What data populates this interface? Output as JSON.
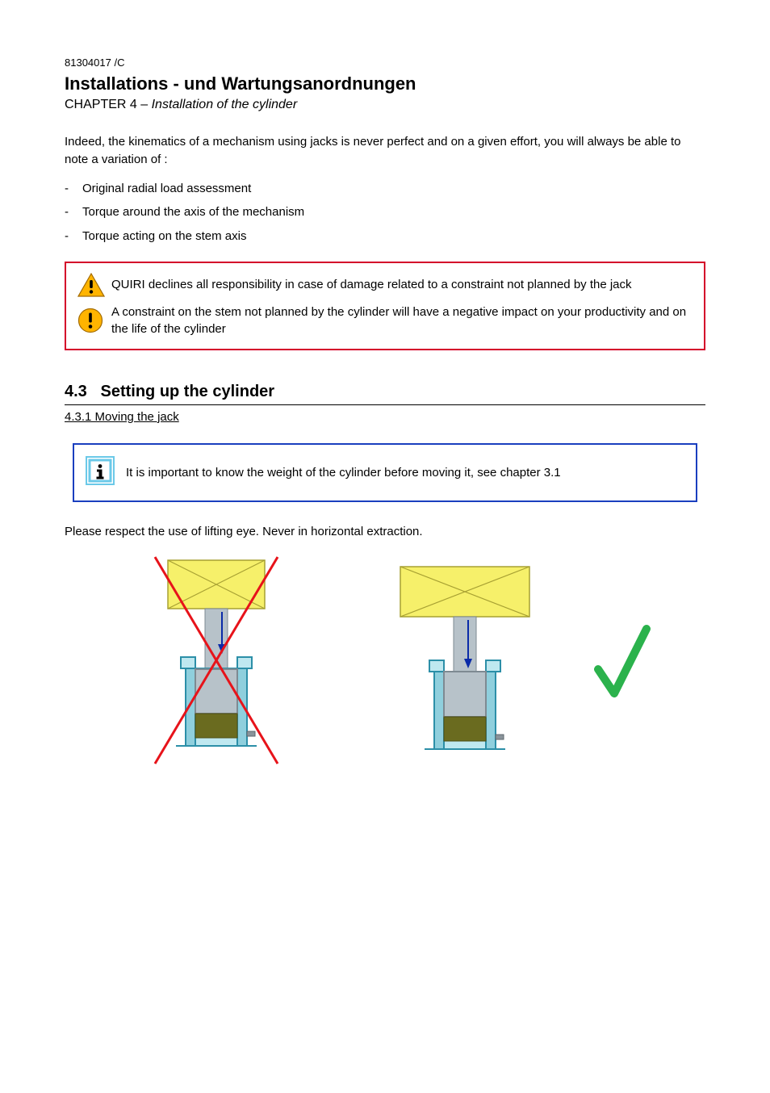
{
  "doc_code": "81304017 /C",
  "doc_title": "Installations - und Wartungsanordnungen",
  "chapter_prefix": "CHAPTER 4 – ",
  "chapter_title_italic": "Installation of the cylinder",
  "intro_para": "Indeed, the kinematics of a mechanism using jacks is never perfect and on a given effort, you will always be able to note a variation of :",
  "bullets": [
    "Original radial load assessment",
    "Torque around the axis of the mechanism",
    "Torque acting on the stem axis"
  ],
  "warn": {
    "line1": "QUIRI declines all responsibility in case of damage related to a constraint not planned by the jack",
    "line2": "A constraint on the stem not planned by the cylinder will have a negative impact on your productivity and on the life of the cylinder"
  },
  "section_number": "4.3",
  "section_title": "Setting up the cylinder",
  "section_sub": "4.3.1 Moving the jack",
  "info_text": "It is important to know the weight of the cylinder before moving it, see chapter 3.1",
  "fig_para": "Please respect the use of lifting eye. Never in horizontal extraction.",
  "colors": {
    "red": "#d4002a",
    "blue_border": "#1a3fbf",
    "info_cyan": "#6bc9e8",
    "info_fill": "#ffffff",
    "warn_yellow": "#ffb400",
    "warn_border": "#a36b00",
    "fig_crate": "#f6f06a",
    "fig_crate_stroke": "#a7a032",
    "fig_shaft": "#b7c2c9",
    "fig_housing_stroke": "#2c8fa8",
    "fig_housing_fill_light": "#bfe8f0",
    "fig_housing_fill_mid": "#8fcfdd",
    "fig_oil": "#6a6b1f",
    "fig_arrow": "#0a2aa8",
    "cross_red": "#e7131a",
    "check_green": "#2bb24c"
  },
  "layout": {
    "figure_svg_w": 240,
    "figure_svg_h": 280
  }
}
